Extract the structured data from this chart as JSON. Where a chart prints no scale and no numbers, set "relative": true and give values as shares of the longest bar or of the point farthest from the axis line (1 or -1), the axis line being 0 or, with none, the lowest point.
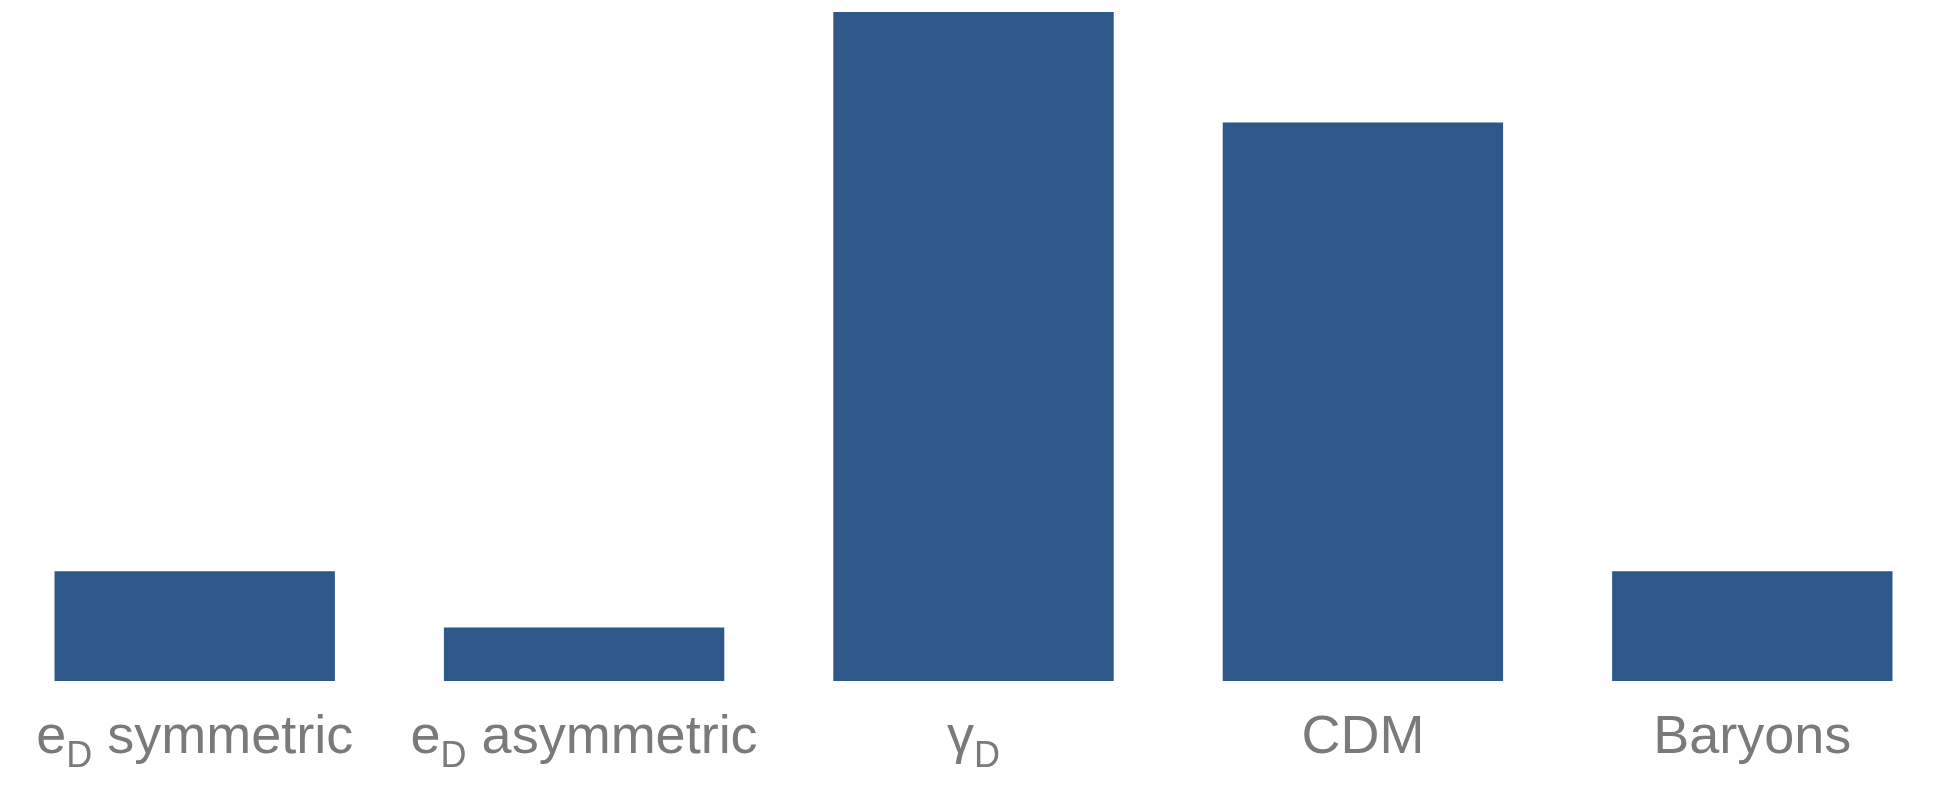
{
  "chart_data": {
    "type": "bar",
    "relative": true,
    "categories": [
      "e$_{D}$ symmetric",
      "e$_{D}$ asymmetric",
      "γ$_{D}$",
      "CDM",
      "Baryons"
    ],
    "values": [
      0.164,
      0.08,
      1,
      0.835,
      0.164
    ],
    "color": "#2e578a"
  }
}
